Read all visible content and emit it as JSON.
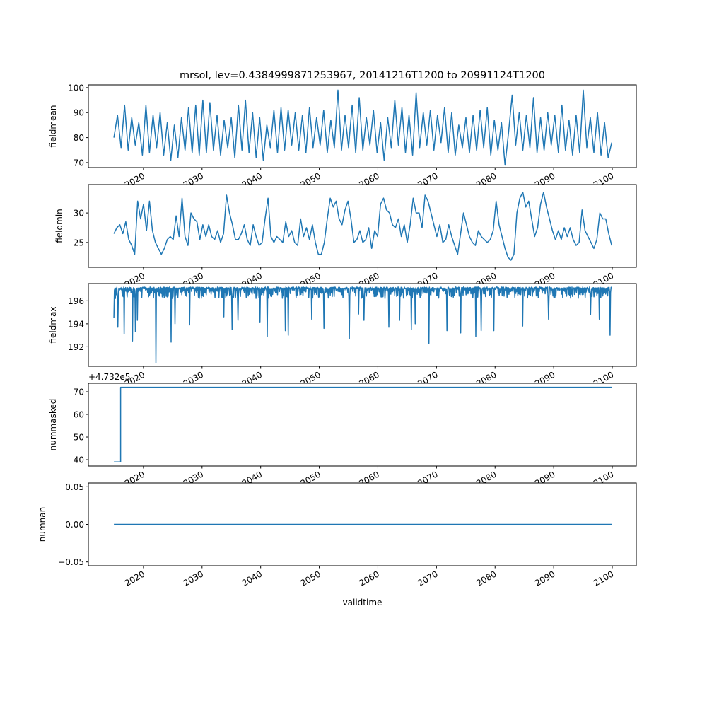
{
  "chart_data": {
    "type": "line",
    "title": "mrsol, lev=0.4384999871253967, 20141216T1200 to 20991124T1200",
    "xlabel": "validtime",
    "xlim": [
      2010.6,
      2104.1
    ],
    "xticks": [
      2020,
      2030,
      2040,
      2050,
      2060,
      2070,
      2080,
      2090,
      2100
    ],
    "xtick_labels": [
      "2020",
      "2030",
      "2040",
      "2050",
      "2060",
      "2070",
      "2080",
      "2090",
      "2100"
    ],
    "line_color": "#1f77b4",
    "panels": [
      {
        "ylabel": "fieldmean",
        "ylim": [
          68.0,
          101.1
        ],
        "yticks": [
          70,
          80,
          90,
          100
        ],
        "ytick_labels": [
          "70",
          "80",
          "90",
          "100"
        ],
        "series": {
          "start": 2014.96,
          "end": 2099.9,
          "values": [
            80,
            89,
            76,
            93,
            75,
            88,
            77,
            86,
            73,
            93,
            74,
            89,
            76,
            90,
            73,
            86,
            71,
            85,
            72,
            88,
            75,
            92,
            74,
            93,
            73,
            95,
            74,
            94,
            75,
            89,
            73,
            87,
            76,
            88,
            72,
            93,
            75,
            95,
            74,
            90,
            72,
            88,
            71,
            85,
            76,
            91,
            74,
            92,
            75,
            91,
            77,
            90,
            75,
            89,
            74,
            92,
            76,
            88,
            77,
            91,
            74,
            87,
            76,
            99,
            75,
            89,
            76,
            93,
            74,
            96,
            75,
            88,
            77,
            91,
            74,
            86,
            71,
            88,
            76,
            95,
            77,
            92,
            74,
            89,
            73,
            98,
            76,
            90,
            77,
            91,
            75,
            89,
            78,
            92,
            74,
            90,
            73,
            85,
            76,
            88,
            74,
            89,
            75,
            91,
            76,
            92,
            73,
            87,
            75,
            86,
            69,
            82,
            97,
            77,
            90,
            75,
            89,
            76,
            96,
            74,
            88,
            75,
            90,
            77,
            89,
            74,
            93,
            75,
            87,
            73,
            89,
            74,
            99,
            76,
            88,
            74,
            90,
            73,
            86,
            72,
            78
          ]
        }
      },
      {
        "ylabel": "fieldmin",
        "ylim": [
          20.8,
          34.8
        ],
        "yticks": [
          25,
          30
        ],
        "ytick_labels": [
          "25",
          "30"
        ],
        "series": {
          "start": 2014.96,
          "end": 2099.9,
          "values": [
            26.5,
            27.5,
            28,
            26.5,
            28.5,
            25.5,
            24.5,
            23,
            32,
            29,
            31.5,
            27,
            32,
            27,
            25,
            24,
            23,
            24,
            25.5,
            26,
            25.5,
            29.5,
            26,
            32.5,
            26,
            24.5,
            30,
            29,
            28.5,
            25.5,
            28,
            26,
            28,
            26,
            25.5,
            27,
            25,
            26.5,
            33,
            30,
            28,
            25.5,
            25.5,
            26.5,
            28,
            25.5,
            24.5,
            28,
            26,
            24.5,
            25,
            29,
            32.5,
            26,
            25,
            26,
            25.5,
            25,
            28.5,
            26,
            27,
            25,
            24.5,
            29,
            26,
            27.5,
            25.5,
            28,
            25,
            23,
            23,
            25,
            29,
            32.5,
            31,
            32,
            29,
            28,
            30.5,
            32,
            29,
            25,
            25.5,
            27,
            25,
            25.5,
            27.5,
            24,
            27,
            26,
            31.5,
            32.5,
            30.5,
            30,
            28,
            27.5,
            29,
            26,
            28,
            25,
            28,
            32.5,
            30,
            30,
            27.5,
            33,
            32,
            30,
            28,
            26,
            28,
            25,
            25.5,
            28,
            26,
            24.5,
            23,
            26.5,
            30,
            28,
            26,
            25,
            24.5,
            27,
            26,
            25.5,
            25,
            25.5,
            27,
            32,
            28,
            26,
            24,
            22.5,
            22,
            23,
            30,
            32.5,
            33.5,
            31,
            32,
            29,
            26,
            27.5,
            31.5,
            33.5,
            31,
            29,
            27,
            25.5,
            27,
            25.5,
            27.5,
            26,
            27.5,
            25.5,
            24.5,
            25,
            30.5,
            27,
            26,
            25,
            24,
            25.5,
            30,
            29,
            29,
            26.5,
            24.5
          ]
        }
      },
      {
        "ylabel": "fieldmax",
        "ylim": [
          190.3,
          197.5
        ],
        "yticks": [
          192,
          194,
          196
        ],
        "ytick_labels": [
          "192",
          "194",
          "196"
        ],
        "series": {
          "start": 2014.96,
          "end": 2099.9,
          "baseline": 197.2,
          "typical_range": [
            196.2,
            197.2
          ],
          "dips": [
            [
              2015.0,
              194.5
            ],
            [
              2015.6,
              193.7
            ],
            [
              2016.7,
              193.1
            ],
            [
              2018.1,
              192.5
            ],
            [
              2018.6,
              193.3
            ],
            [
              2019.0,
              194.3
            ],
            [
              2022.1,
              190.6
            ],
            [
              2024.7,
              192.4
            ],
            [
              2025.4,
              194.0
            ],
            [
              2027.9,
              193.9
            ],
            [
              2033.7,
              194.6
            ],
            [
              2035.1,
              193.5
            ],
            [
              2036.1,
              194.3
            ],
            [
              2039.9,
              194.1
            ],
            [
              2041.1,
              192.9
            ],
            [
              2044.2,
              193.4
            ],
            [
              2044.7,
              193.0
            ],
            [
              2048.7,
              194.4
            ],
            [
              2050.8,
              193.6
            ],
            [
              2055.1,
              192.7
            ],
            [
              2056.7,
              194.85
            ],
            [
              2057.6,
              194.3
            ],
            [
              2061.9,
              193.7
            ],
            [
              2063.7,
              194.3
            ],
            [
              2065.7,
              193.5
            ],
            [
              2066.4,
              194.0
            ],
            [
              2068.7,
              192.3
            ],
            [
              2071.8,
              193.4
            ],
            [
              2074.1,
              193.2
            ],
            [
              2076.7,
              192.9
            ],
            [
              2077.6,
              193.4
            ],
            [
              2079.8,
              193.4
            ],
            [
              2084.7,
              193.8
            ],
            [
              2089.1,
              194.4
            ],
            [
              2096.3,
              194.8
            ],
            [
              2097.8,
              194.4
            ],
            [
              2099.6,
              193.0
            ]
          ]
        }
      },
      {
        "ylabel": "nummasked",
        "offset_text": "+4.732e5",
        "ylim": [
          37.2,
          73.75
        ],
        "yticks": [
          40,
          50,
          60,
          70
        ],
        "ytick_labels": [
          "40",
          "50",
          "60",
          "70"
        ],
        "series": {
          "step_points": [
            [
              2014.96,
              39
            ],
            [
              2016.1,
              39
            ],
            [
              2016.1,
              72
            ],
            [
              2099.9,
              72
            ]
          ]
        }
      },
      {
        "ylabel": "numnan",
        "ylim": [
          -0.055,
          0.055
        ],
        "yticks": [
          0.05,
          0.0,
          -0.05
        ],
        "ytick_labels": [
          "0.05",
          "0.00",
          "−0.05"
        ],
        "series": {
          "step_points": [
            [
              2014.96,
              0.0
            ],
            [
              2099.9,
              0.0
            ]
          ]
        }
      }
    ]
  }
}
